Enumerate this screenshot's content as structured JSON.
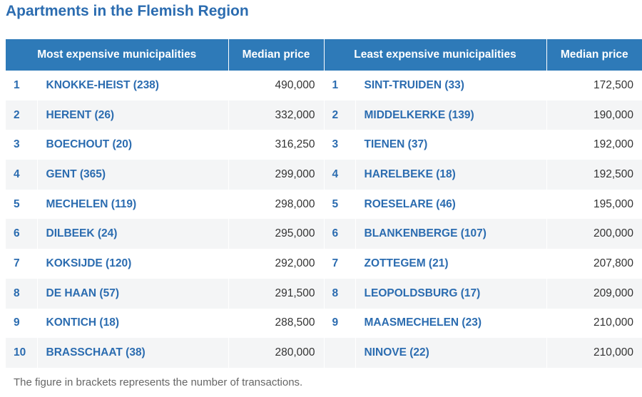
{
  "title": "Apartments in the Flemish Region",
  "headers": {
    "most_expensive": "Most expensive municipalities",
    "median_price_left": "Median price",
    "least_expensive": "Least expensive municipalities",
    "median_price_right": "Median price"
  },
  "chart_data": {
    "type": "table",
    "title": "Apartments in the Flemish Region",
    "columns": [
      "Most expensive municipalities",
      "Median price",
      "Least expensive municipalities",
      "Median price"
    ],
    "most_expensive": [
      {
        "rank": "1",
        "name": "KNOKKE-HEIST (238)",
        "price": "490,000"
      },
      {
        "rank": "2",
        "name": "HERENT (26)",
        "price": "332,000"
      },
      {
        "rank": "3",
        "name": "BOECHOUT (20)",
        "price": "316,250"
      },
      {
        "rank": "4",
        "name": "GENT (365)",
        "price": "299,000"
      },
      {
        "rank": "5",
        "name": "MECHELEN (119)",
        "price": "298,000"
      },
      {
        "rank": "6",
        "name": "DILBEEK (24)",
        "price": "295,000"
      },
      {
        "rank": "7",
        "name": "KOKSIJDE (120)",
        "price": "292,000"
      },
      {
        "rank": "8",
        "name": "DE HAAN (57)",
        "price": "291,500"
      },
      {
        "rank": "9",
        "name": "KONTICH (18)",
        "price": "288,500"
      },
      {
        "rank": "10",
        "name": "BRASSCHAAT (38)",
        "price": "280,000"
      }
    ],
    "least_expensive": [
      {
        "rank": "1",
        "name": "SINT-TRUIDEN (33)",
        "price": "172,500"
      },
      {
        "rank": "2",
        "name": "MIDDELKERKE (139)",
        "price": "190,000"
      },
      {
        "rank": "3",
        "name": "TIENEN (37)",
        "price": "192,000"
      },
      {
        "rank": "4",
        "name": "HARELBEKE (18)",
        "price": "192,500"
      },
      {
        "rank": "5",
        "name": "ROESELARE (46)",
        "price": "195,000"
      },
      {
        "rank": "6",
        "name": "BLANKENBERGE (107)",
        "price": "200,000"
      },
      {
        "rank": "7",
        "name": "ZOTTEGEM (21)",
        "price": "207,800"
      },
      {
        "rank": "8",
        "name": "LEOPOLDSBURG (17)",
        "price": "209,000"
      },
      {
        "rank": "9",
        "name": "MAASMECHELEN (23)",
        "price": "210,000"
      },
      {
        "rank": "",
        "name": "NINOVE (22)",
        "price": "210,000"
      }
    ]
  },
  "footnote": "The figure in brackets represents the number of transactions.",
  "colors": {
    "accent": "#2b6cb0",
    "header_bg": "#2e7ab8",
    "row_alt": "#f4f5f6",
    "price_text": "#333333",
    "footnote_text": "#666666"
  }
}
